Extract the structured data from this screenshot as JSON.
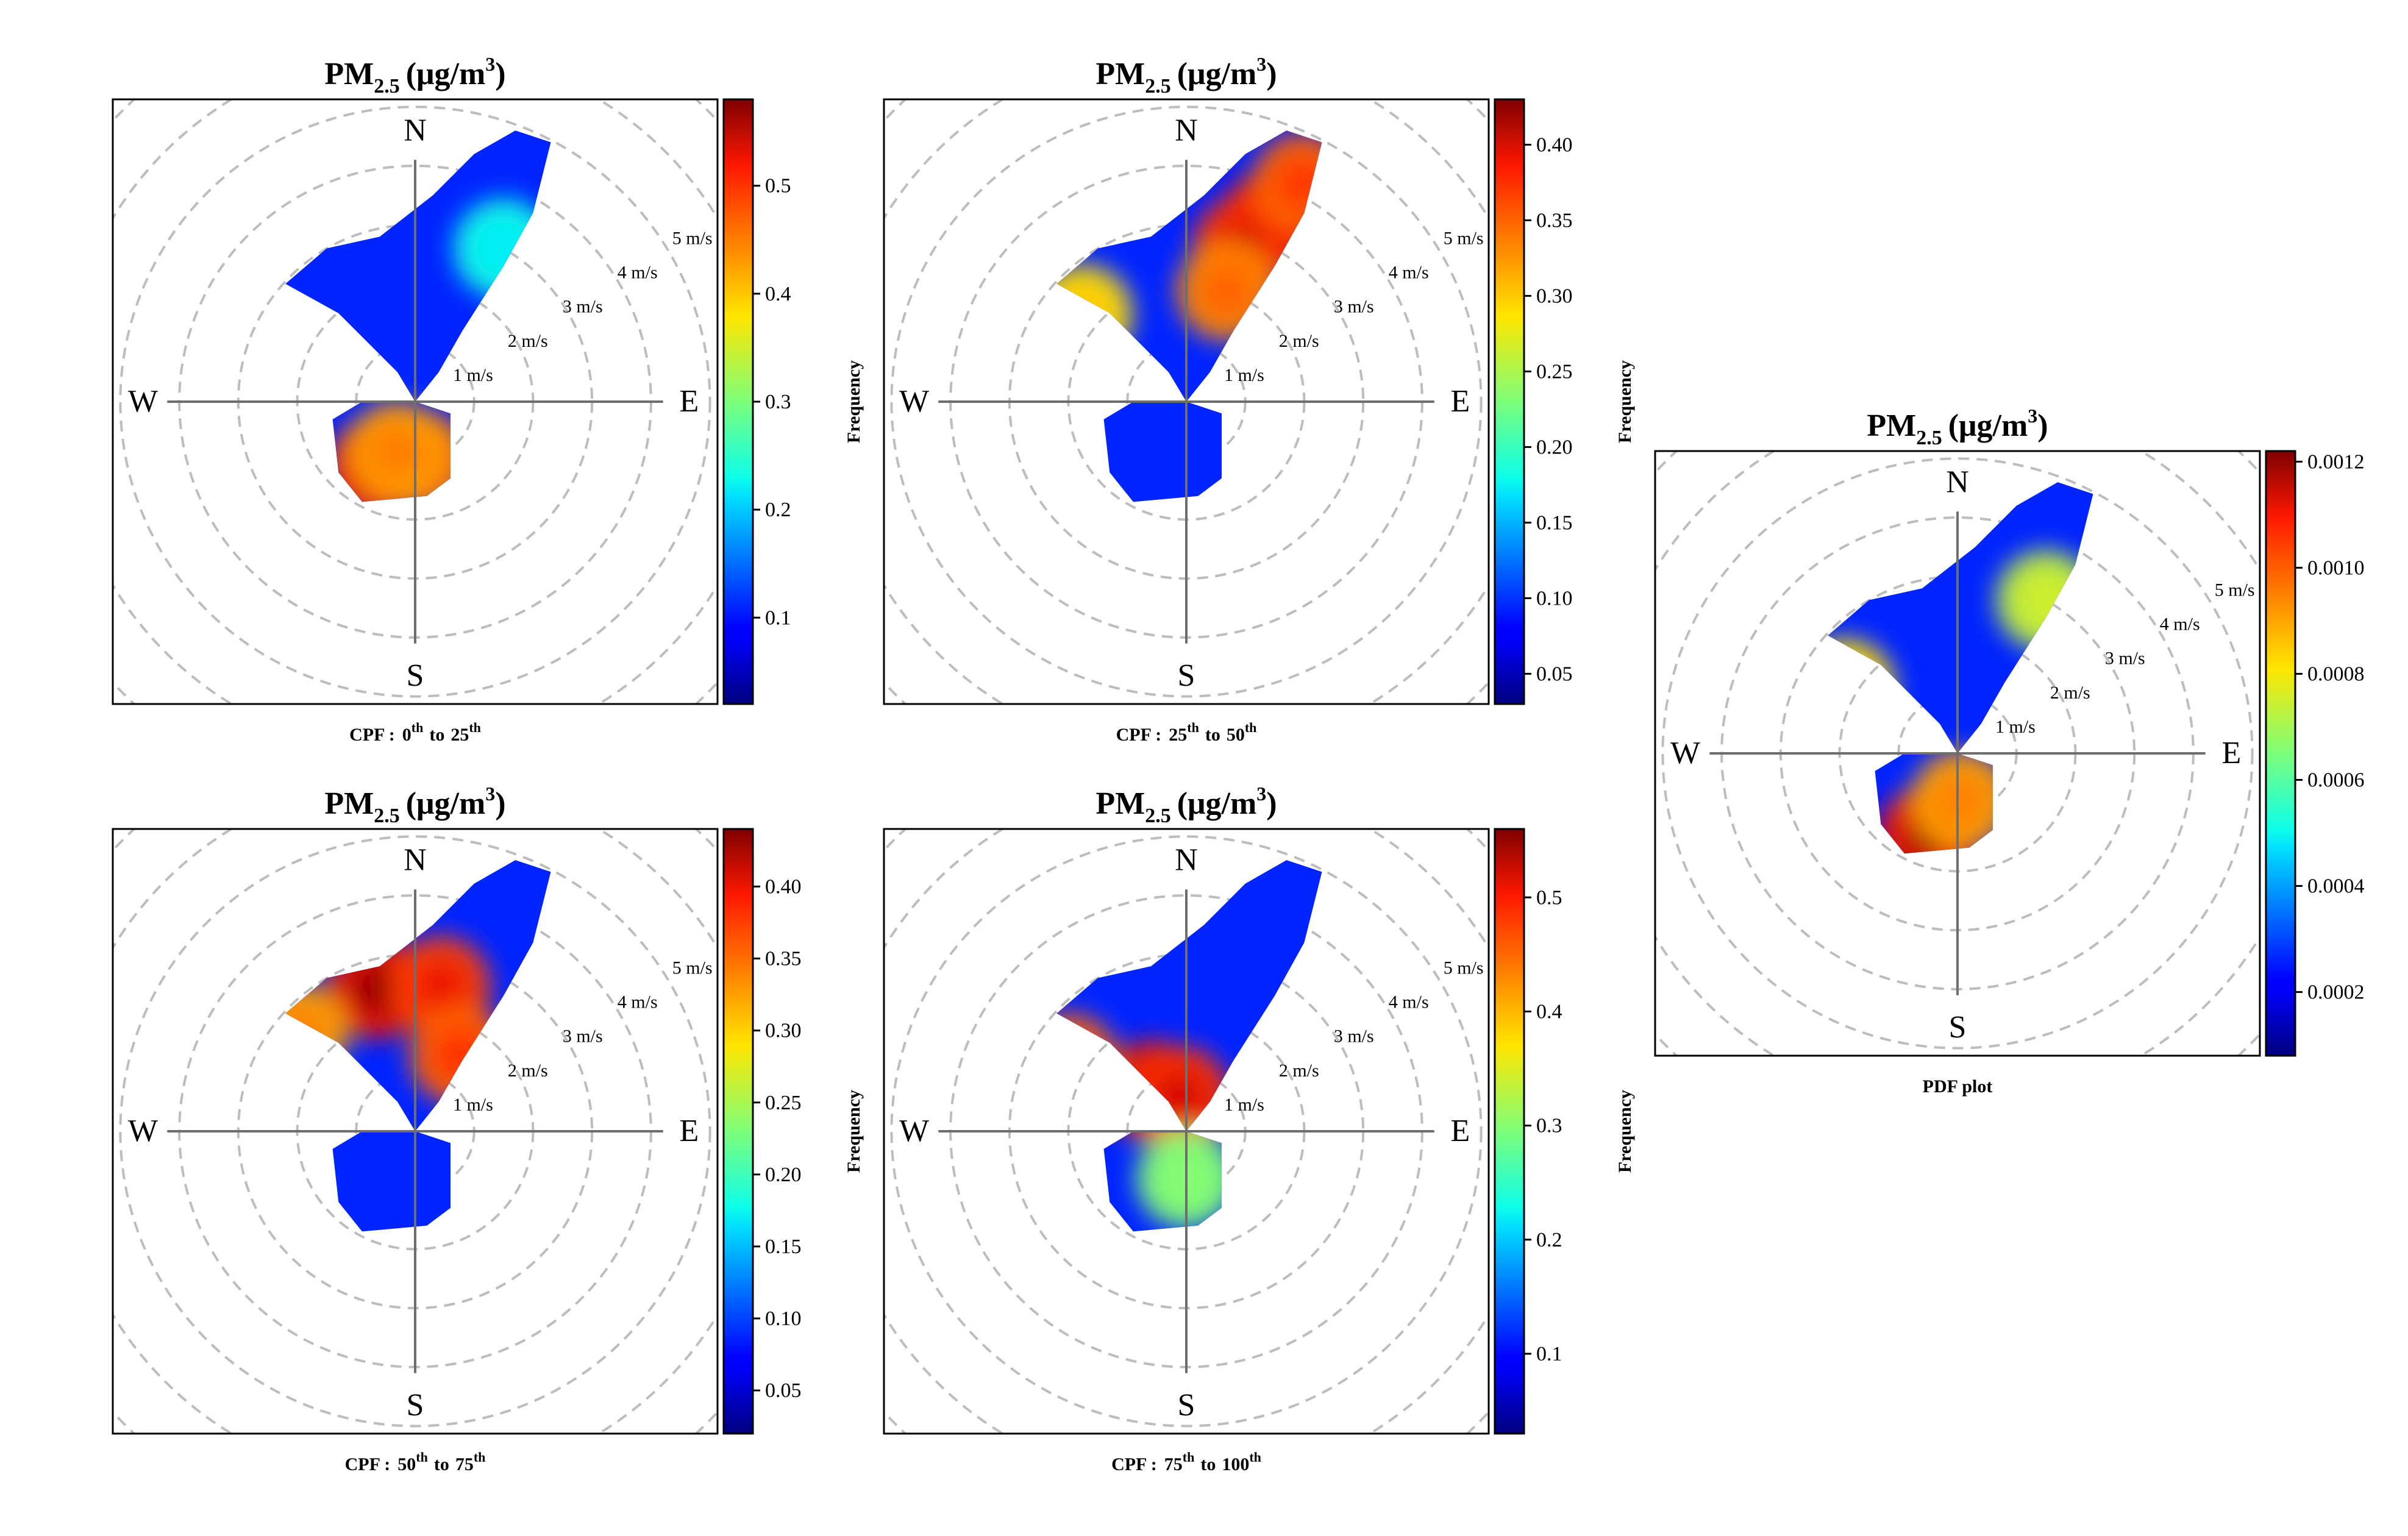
{
  "chart_data": [
    {
      "type": "heatmap",
      "title_main": "PM",
      "title_sub": "2.5",
      "title_unit": "(μg/m",
      "title_sup": "3",
      "title_close": ")",
      "compass": [
        "N",
        "E",
        "S",
        "W"
      ],
      "ring_labels": [
        "1 m/s",
        "2 m/s",
        "3 m/s",
        "4 m/s",
        "5 m/s"
      ],
      "colorbar_label": "Frequency",
      "colorbar_ticks": [
        "0.1",
        "0.2",
        "0.3",
        "0.4",
        "0.5"
      ],
      "colorbar_range": [
        0.02,
        0.58
      ],
      "caption_prefix": "CPF :",
      "caption_from": "0",
      "caption_from_sup": "th",
      "caption_mid": "to",
      "caption_to": "25",
      "caption_to_sup": "th",
      "hotspots": [
        {
          "direction_deg": 210,
          "speed": 1.3,
          "value": 0.56
        },
        {
          "direction_deg": 175,
          "speed": 1.0,
          "value": 0.48
        },
        {
          "direction_deg": 200,
          "speed": 0.9,
          "value": 0.45
        },
        {
          "direction_deg": 30,
          "speed": 3.0,
          "value": 0.22
        }
      ]
    },
    {
      "type": "heatmap",
      "title_main": "PM",
      "title_sub": "2.5",
      "title_unit": "(μg/m",
      "title_sup": "3",
      "title_close": ")",
      "compass": [
        "N",
        "E",
        "S",
        "W"
      ],
      "ring_labels": [
        "1 m/s",
        "2 m/s",
        "3 m/s",
        "4 m/s",
        "5 m/s"
      ],
      "colorbar_label": "Frequency",
      "colorbar_ticks": [
        "0.05",
        "0.10",
        "0.15",
        "0.20",
        "0.25",
        "0.30",
        "0.35",
        "0.40"
      ],
      "colorbar_range": [
        0.03,
        0.43
      ],
      "caption_prefix": "CPF :",
      "caption_from": "25",
      "caption_from_sup": "th",
      "caption_mid": "to",
      "caption_to": "50",
      "caption_to_sup": "th",
      "hotspots": [
        {
          "direction_deg": 25,
          "speed": 3.4,
          "value": 0.42
        },
        {
          "direction_deg": 20,
          "speed": 2.8,
          "value": 0.4
        },
        {
          "direction_deg": 28,
          "speed": 4.2,
          "value": 0.37
        },
        {
          "direction_deg": 20,
          "speed": 2.0,
          "value": 0.35
        },
        {
          "direction_deg": 310,
          "speed": 2.3,
          "value": 0.3
        }
      ]
    },
    {
      "type": "heatmap",
      "title_main": "PM",
      "title_sub": "2.5",
      "title_unit": "(μg/m",
      "title_sup": "3",
      "title_close": ")",
      "compass": [
        "N",
        "E",
        "S",
        "W"
      ],
      "ring_labels": [
        "1 m/s",
        "2 m/s",
        "3 m/s",
        "4 m/s",
        "5 m/s"
      ],
      "colorbar_label": "Frequency",
      "colorbar_ticks": [
        "0.05",
        "0.10",
        "0.15",
        "0.20",
        "0.25",
        "0.30",
        "0.35",
        "0.40"
      ],
      "colorbar_range": [
        0.02,
        0.44
      ],
      "caption_prefix": "CPF :",
      "caption_from": "50",
      "caption_from_sup": "th",
      "caption_mid": "to",
      "caption_to": "75",
      "caption_to_sup": "th",
      "hotspots": [
        {
          "direction_deg": 345,
          "speed": 2.5,
          "value": 0.43
        },
        {
          "direction_deg": 10,
          "speed": 2.5,
          "value": 0.4
        },
        {
          "direction_deg": 30,
          "speed": 1.5,
          "value": 0.38
        },
        {
          "direction_deg": 310,
          "speed": 2.6,
          "value": 0.34
        }
      ]
    },
    {
      "type": "heatmap",
      "title_main": "PM",
      "title_sub": "2.5",
      "title_unit": "(μg/m",
      "title_sup": "3",
      "title_close": ")",
      "compass": [
        "N",
        "E",
        "S",
        "W"
      ],
      "ring_labels": [
        "1 m/s",
        "2 m/s",
        "3 m/s",
        "4 m/s",
        "5 m/s"
      ],
      "colorbar_label": "Frequency",
      "colorbar_ticks": [
        "0.1",
        "0.2",
        "0.3",
        "0.4",
        "0.5"
      ],
      "colorbar_range": [
        0.03,
        0.56
      ],
      "caption_prefix": "CPF :",
      "caption_from": "75",
      "caption_from_sup": "th",
      "caption_mid": "to",
      "caption_to": "100",
      "caption_to_sup": "th",
      "hotspots": [
        {
          "direction_deg": 320,
          "speed": 0.9,
          "value": 0.55
        },
        {
          "direction_deg": 350,
          "speed": 0.6,
          "value": 0.52
        },
        {
          "direction_deg": 300,
          "speed": 2.3,
          "value": 0.48
        },
        {
          "direction_deg": 180,
          "speed": 0.8,
          "value": 0.3
        }
      ]
    },
    {
      "type": "heatmap",
      "title_main": "PM",
      "title_sub": "2.5",
      "title_unit": "(μg/m",
      "title_sup": "3",
      "title_close": ")",
      "compass": [
        "N",
        "E",
        "S",
        "W"
      ],
      "ring_labels": [
        "1 m/s",
        "2 m/s",
        "3 m/s",
        "4 m/s",
        "5 m/s"
      ],
      "colorbar_label": "Frequency",
      "colorbar_ticks": [
        "0.0002",
        "0.0004",
        "0.0006",
        "0.0008",
        "0.0010",
        "0.0012"
      ],
      "colorbar_range": [
        8e-05,
        0.00122
      ],
      "caption": "PDF plot",
      "hotspots": [
        {
          "direction_deg": 200,
          "speed": 1.5,
          "value": 0.00118
        },
        {
          "direction_deg": 175,
          "speed": 0.8,
          "value": 0.00095
        },
        {
          "direction_deg": 300,
          "speed": 2.2,
          "value": 0.00085
        },
        {
          "direction_deg": 30,
          "speed": 3.0,
          "value": 0.00075
        }
      ]
    }
  ]
}
